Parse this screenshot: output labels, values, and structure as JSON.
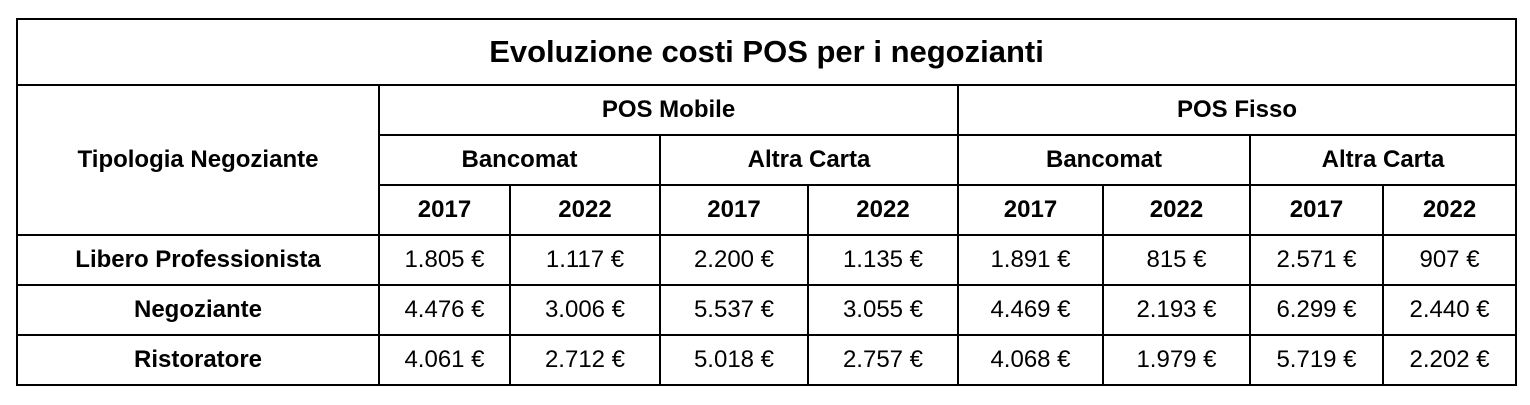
{
  "title": "Evoluzione costi POS per i negozianti",
  "row_header": "Tipologia Negoziante",
  "groups": [
    {
      "name": "POS Mobile",
      "subgroups": [
        {
          "name": "Bancomat",
          "years": [
            "2017",
            "2022"
          ]
        },
        {
          "name": "Altra Carta",
          "years": [
            "2017",
            "2022"
          ]
        }
      ]
    },
    {
      "name": "POS Fisso",
      "subgroups": [
        {
          "name": "Bancomat",
          "years": [
            "2017",
            "2022"
          ]
        },
        {
          "name": "Altra Carta",
          "years": [
            "2017",
            "2022"
          ]
        }
      ]
    }
  ],
  "rows": [
    {
      "label": "Libero Professionista",
      "values": [
        "1.805 €",
        "1.117 €",
        "2.200 €",
        "1.135 €",
        "1.891 €",
        "815 €",
        "2.571 €",
        "907 €"
      ]
    },
    {
      "label": "Negoziante",
      "values": [
        "4.476 €",
        "3.006 €",
        "5.537 €",
        "3.055 €",
        "4.469 €",
        "2.193 €",
        "6.299 €",
        "2.440 €"
      ]
    },
    {
      "label": "Ristoratore",
      "values": [
        "4.061 €",
        "2.712 €",
        "5.018 €",
        "2.757 €",
        "4.068 €",
        "1.979 €",
        "5.719 €",
        "2.202 €"
      ]
    }
  ]
}
